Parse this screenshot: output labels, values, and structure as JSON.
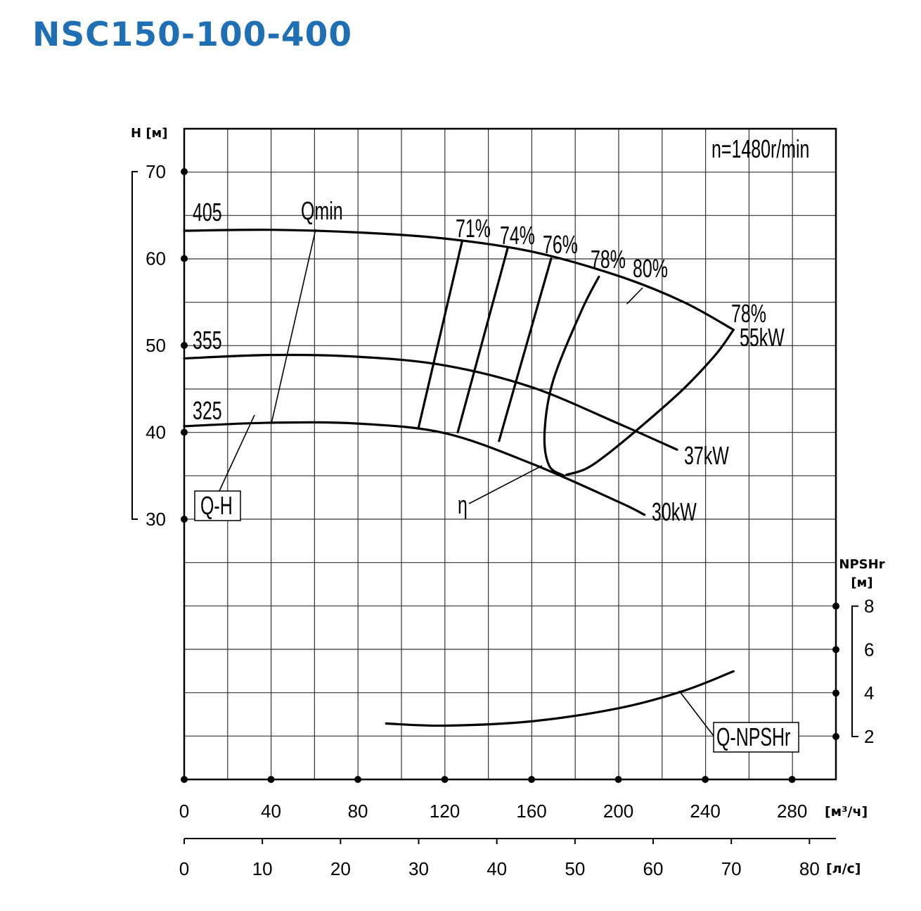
{
  "title": "NSC150-100-400",
  "colors": {
    "title": "#1f6fb5",
    "lines": "#000000"
  },
  "chart_data": {
    "type": "line",
    "speed_label": "n=1480r/min",
    "grid": true,
    "axes": {
      "x_flow_m3h": {
        "unit": "[м³/ч]",
        "range": [
          0,
          300
        ],
        "ticks": [
          0,
          40,
          80,
          120,
          160,
          200,
          240,
          280
        ]
      },
      "x_flow_ls": {
        "unit": "[л/с]",
        "range": [
          0,
          83.3
        ],
        "ticks": [
          0,
          10,
          20,
          30,
          40,
          50,
          60,
          70,
          80
        ]
      },
      "y_head": {
        "label": "H [м]",
        "range": [
          25,
          75
        ],
        "ticks": [
          30,
          40,
          50,
          60,
          70
        ]
      },
      "y_npshr": {
        "label": "NPSHr",
        "unit": "[м]",
        "range": [
          0,
          10
        ],
        "ticks": [
          2,
          4,
          6,
          8
        ]
      }
    },
    "qh_curves": [
      {
        "name": "405",
        "x": [
          0,
          40,
          80,
          120,
          160,
          200,
          230,
          253
        ],
        "y": [
          63.2,
          63.3,
          63.0,
          62.3,
          60.8,
          58.0,
          55.0,
          51.8
        ]
      },
      {
        "name": "355",
        "x": [
          0,
          40,
          80,
          120,
          160,
          200,
          227
        ],
        "y": [
          48.5,
          48.9,
          48.7,
          47.7,
          45.2,
          41.0,
          38.0
        ]
      },
      {
        "name": "325",
        "x": [
          0,
          40,
          80,
          120,
          160,
          200,
          212
        ],
        "y": [
          40.7,
          41.1,
          41.0,
          39.9,
          36.4,
          32.0,
          30.5
        ]
      }
    ],
    "efficiency_lines": [
      {
        "name": "71%",
        "x": [
          108,
          128
        ],
        "y": [
          40.6,
          62.0
        ]
      },
      {
        "name": "74%",
        "x": [
          126,
          149
        ],
        "y": [
          40.0,
          61.2
        ]
      },
      {
        "name": "76%",
        "x": [
          145,
          169
        ],
        "y": [
          39.0,
          60.0
        ]
      },
      {
        "name": "78%",
        "x": [
          175,
          168,
          166,
          170,
          183,
          191
        ],
        "y": [
          35.0,
          36.2,
          40.0,
          46.0,
          54.0,
          57.9
        ]
      },
      {
        "name": "80%",
        "x": [
          204,
          211
        ],
        "y": [
          54.8,
          56.6
        ]
      }
    ],
    "efficiency_labels": [
      "71%",
      "74%",
      "76%",
      "78%",
      "80%"
    ],
    "power_envelope": {
      "x": [
        176,
        185,
        195,
        212,
        230,
        245,
        253
      ],
      "y": [
        35.1,
        35.8,
        37.5,
        41.0,
        45.0,
        49.0,
        51.8
      ]
    },
    "end_point": {
      "efficiency": "78%",
      "power": "55kW"
    },
    "power_labels": [
      "37kW",
      "30kW"
    ],
    "qmin": "Qmin",
    "eta_symbol": "η",
    "q_h_label": "Q-H",
    "npshr_curve": {
      "name": "Q-NPSHr",
      "x": [
        93,
        120,
        160,
        200,
        230,
        253
      ],
      "y": [
        2.6,
        2.5,
        2.7,
        3.3,
        4.1,
        5.0
      ]
    }
  }
}
